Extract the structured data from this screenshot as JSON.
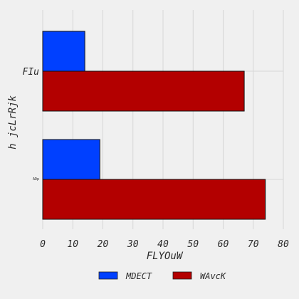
{
  "chart_data": {
    "type": "bar",
    "orientation": "horizontal",
    "categories": [
      "FIu",
      "ADp"
    ],
    "series": [
      {
        "name": "MDECT",
        "values": [
          14,
          19
        ],
        "color": "#0040ff"
      },
      {
        "name": "WAvcK",
        "values": [
          67,
          74
        ],
        "color": "#b30000"
      }
    ],
    "xlabel": "FLYOuW",
    "ylabel": "h jcLrRjk",
    "xlim": [
      0,
      80
    ],
    "xticks": [
      0,
      10,
      20,
      30,
      40,
      50,
      60,
      70,
      80
    ],
    "grid": true,
    "legend_position": "bottom-center"
  }
}
